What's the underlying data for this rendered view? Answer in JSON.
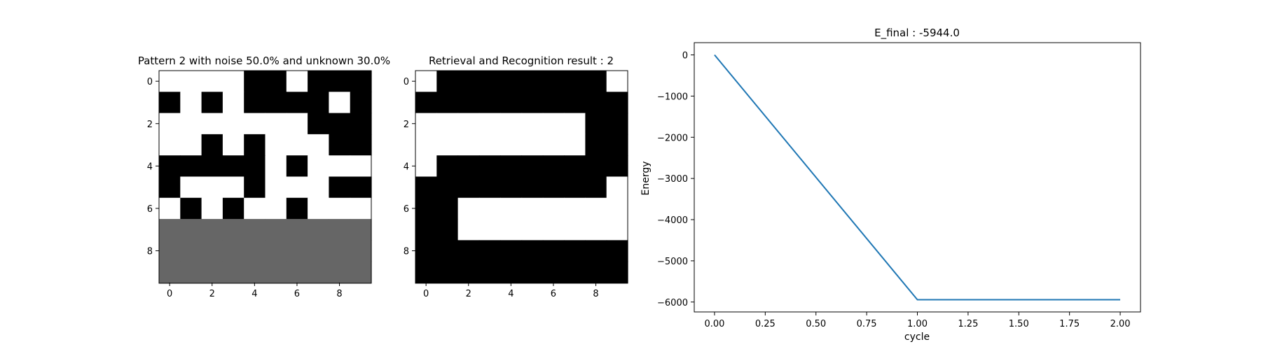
{
  "colors": {
    "white": "#ffffff",
    "black": "#000000",
    "unknown": "#666666",
    "line": "#1f77b4"
  },
  "chart_data": [
    {
      "type": "heatmap",
      "title": "Pattern 2 with noise 50.0% and unknown 30.0%",
      "value_legend": {
        "0": "white",
        "1": "black",
        "2": "unknown"
      },
      "grid": [
        [
          0,
          0,
          0,
          0,
          1,
          1,
          0,
          1,
          1,
          1
        ],
        [
          1,
          0,
          1,
          0,
          1,
          1,
          1,
          1,
          0,
          1
        ],
        [
          0,
          0,
          0,
          0,
          0,
          0,
          0,
          1,
          1,
          1
        ],
        [
          0,
          0,
          1,
          0,
          1,
          0,
          0,
          0,
          1,
          1
        ],
        [
          1,
          1,
          1,
          1,
          1,
          0,
          1,
          0,
          0,
          0
        ],
        [
          1,
          0,
          0,
          0,
          1,
          0,
          0,
          0,
          1,
          1
        ],
        [
          0,
          1,
          0,
          1,
          0,
          0,
          1,
          0,
          0,
          0
        ],
        [
          2,
          2,
          2,
          2,
          2,
          2,
          2,
          2,
          2,
          2
        ],
        [
          2,
          2,
          2,
          2,
          2,
          2,
          2,
          2,
          2,
          2
        ],
        [
          2,
          2,
          2,
          2,
          2,
          2,
          2,
          2,
          2,
          2
        ]
      ],
      "xticks": [
        "0",
        "2",
        "4",
        "6",
        "8"
      ],
      "yticks": [
        "0",
        "2",
        "4",
        "6",
        "8"
      ]
    },
    {
      "type": "heatmap",
      "title": "Retrieval and Recognition result : 2",
      "value_legend": {
        "0": "white",
        "1": "black"
      },
      "grid": [
        [
          0,
          1,
          1,
          1,
          1,
          1,
          1,
          1,
          1,
          0
        ],
        [
          1,
          1,
          1,
          1,
          1,
          1,
          1,
          1,
          1,
          1
        ],
        [
          0,
          0,
          0,
          0,
          0,
          0,
          0,
          0,
          1,
          1
        ],
        [
          0,
          0,
          0,
          0,
          0,
          0,
          0,
          0,
          1,
          1
        ],
        [
          0,
          1,
          1,
          1,
          1,
          1,
          1,
          1,
          1,
          1
        ],
        [
          1,
          1,
          1,
          1,
          1,
          1,
          1,
          1,
          1,
          0
        ],
        [
          1,
          1,
          0,
          0,
          0,
          0,
          0,
          0,
          0,
          0
        ],
        [
          1,
          1,
          0,
          0,
          0,
          0,
          0,
          0,
          0,
          0
        ],
        [
          1,
          1,
          1,
          1,
          1,
          1,
          1,
          1,
          1,
          1
        ],
        [
          1,
          1,
          1,
          1,
          1,
          1,
          1,
          1,
          1,
          1
        ]
      ],
      "xticks": [
        "0",
        "2",
        "4",
        "6",
        "8"
      ],
      "yticks": [
        "0",
        "2",
        "4",
        "6",
        "8"
      ]
    },
    {
      "type": "line",
      "title": "E_final : -5944.0",
      "xlabel": "cycle",
      "ylabel": "Energy",
      "x": [
        0.0,
        1.0,
        2.0
      ],
      "series": [
        {
          "values": [
            0,
            -5944,
            -5944
          ]
        }
      ],
      "xlim": [
        -0.1,
        2.1
      ],
      "ylim": [
        -6241,
        297
      ],
      "xticks": [
        0.0,
        0.25,
        0.5,
        0.75,
        1.0,
        1.25,
        1.5,
        1.75,
        2.0
      ],
      "xtick_labels": [
        "0.00",
        "0.25",
        "0.50",
        "0.75",
        "1.00",
        "1.25",
        "1.50",
        "1.75",
        "2.00"
      ],
      "yticks": [
        0,
        -1000,
        -2000,
        -3000,
        -4000,
        -5000,
        -6000
      ],
      "ytick_labels": [
        "0",
        "−1000",
        "−2000",
        "−3000",
        "−4000",
        "−5000",
        "−6000"
      ],
      "grid": false,
      "legend": "none"
    }
  ]
}
